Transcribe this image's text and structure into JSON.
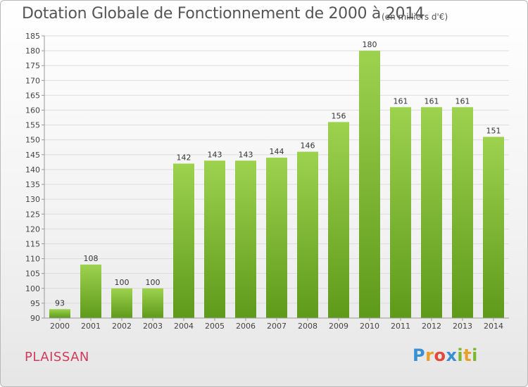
{
  "title": "Dotation Globale de Fonctionnement de 2000 à 2014",
  "subtitle": "(en milliers d'€)",
  "commune": "PLAISSAN",
  "logo_text": "Proxiti",
  "chart_data": {
    "type": "bar",
    "title": "Dotation Globale de Fonctionnement de 2000 à 2014",
    "subtitle": "(en milliers d'€)",
    "xlabel": "",
    "ylabel": "",
    "categories": [
      "2000",
      "2001",
      "2002",
      "2003",
      "2004",
      "2005",
      "2006",
      "2007",
      "2008",
      "2009",
      "2010",
      "2011",
      "2012",
      "2013",
      "2014"
    ],
    "values": [
      93,
      108,
      100,
      100,
      142,
      143,
      143,
      144,
      146,
      156,
      180,
      161,
      161,
      161,
      151
    ],
    "ylim": [
      90,
      185
    ],
    "yticks": [
      90,
      95,
      100,
      105,
      110,
      115,
      120,
      125,
      130,
      135,
      140,
      145,
      150,
      155,
      160,
      165,
      170,
      175,
      180,
      185
    ],
    "grid": true,
    "bar_color_top": "#9dd24f",
    "bar_color_bottom": "#5e9a1a"
  }
}
